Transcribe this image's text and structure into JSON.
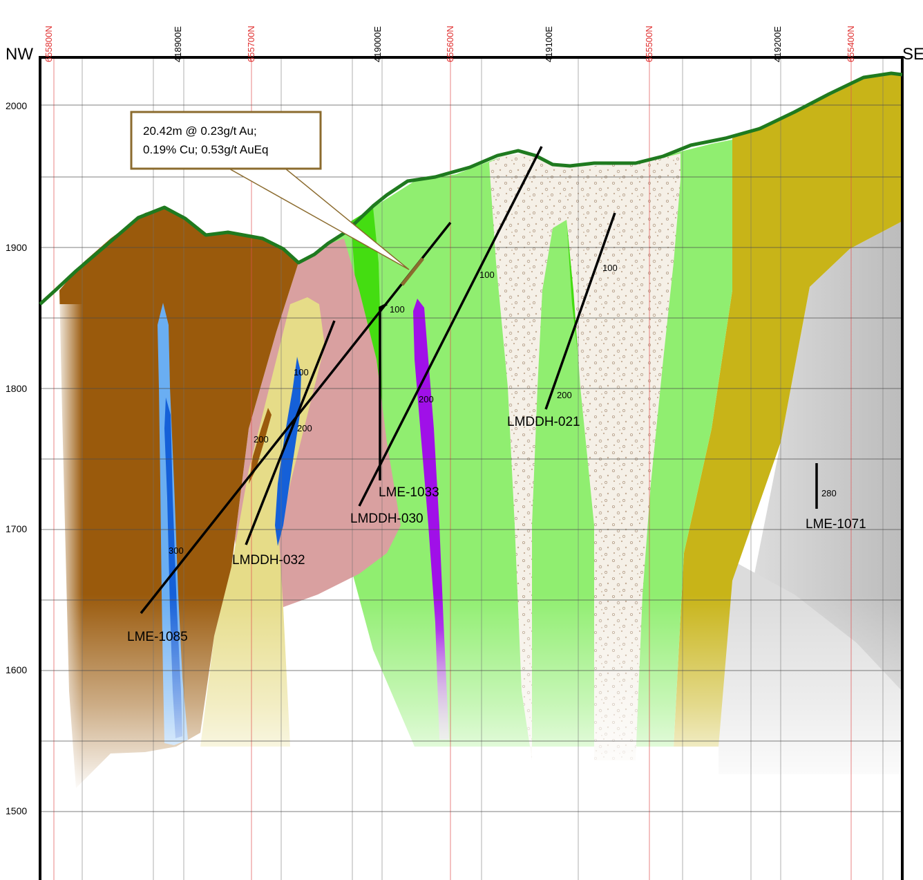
{
  "section": {
    "direction_left": "NW",
    "direction_right": "SE",
    "elevation_labels": [
      "2000",
      "1900",
      "1800",
      "1700",
      "1600",
      "1500"
    ],
    "easting_labels": [
      "418900E",
      "419000E",
      "419100E",
      "419200E"
    ],
    "northing_labels": [
      "655800N",
      "655700N",
      "655600N",
      "655500N",
      "655400N"
    ]
  },
  "callout": {
    "line1": "20.42m @ 0.23g/t Au;",
    "line2": "0.19% Cu; 0.53g/t AuEq"
  },
  "drillholes": [
    {
      "name": "LME-1085",
      "depth_labels": [
        "200",
        "300"
      ]
    },
    {
      "name": "LMDDH-032",
      "depth_labels": [
        "100",
        "200"
      ]
    },
    {
      "name": "LME-1033",
      "depth_labels": [
        "100"
      ]
    },
    {
      "name": "LMDDH-030",
      "depth_labels": [
        "100",
        "200"
      ]
    },
    {
      "name": "LMDDH-021",
      "depth_labels": [
        "100",
        "200"
      ]
    },
    {
      "name": "LME-1071",
      "depth_labels": [
        "280"
      ]
    }
  ],
  "colors": {
    "topography": "#1f7a1f",
    "brown_unit": "#9a5a0c",
    "pink_unit": "#d9a0a0",
    "pale_yellow_unit": "#e6dc88",
    "light_green_unit": "#90ee70",
    "bright_green_unit": "#44dd11",
    "olive_unit": "#c8b418",
    "grey_unit": "#cccccc",
    "breccia_unit": "#f4efe6",
    "light_blue_unit": "#6aaef2",
    "dark_blue_unit": "#1560d8",
    "purple_unit": "#a010e8",
    "callout_border": "#8b6b2e"
  }
}
